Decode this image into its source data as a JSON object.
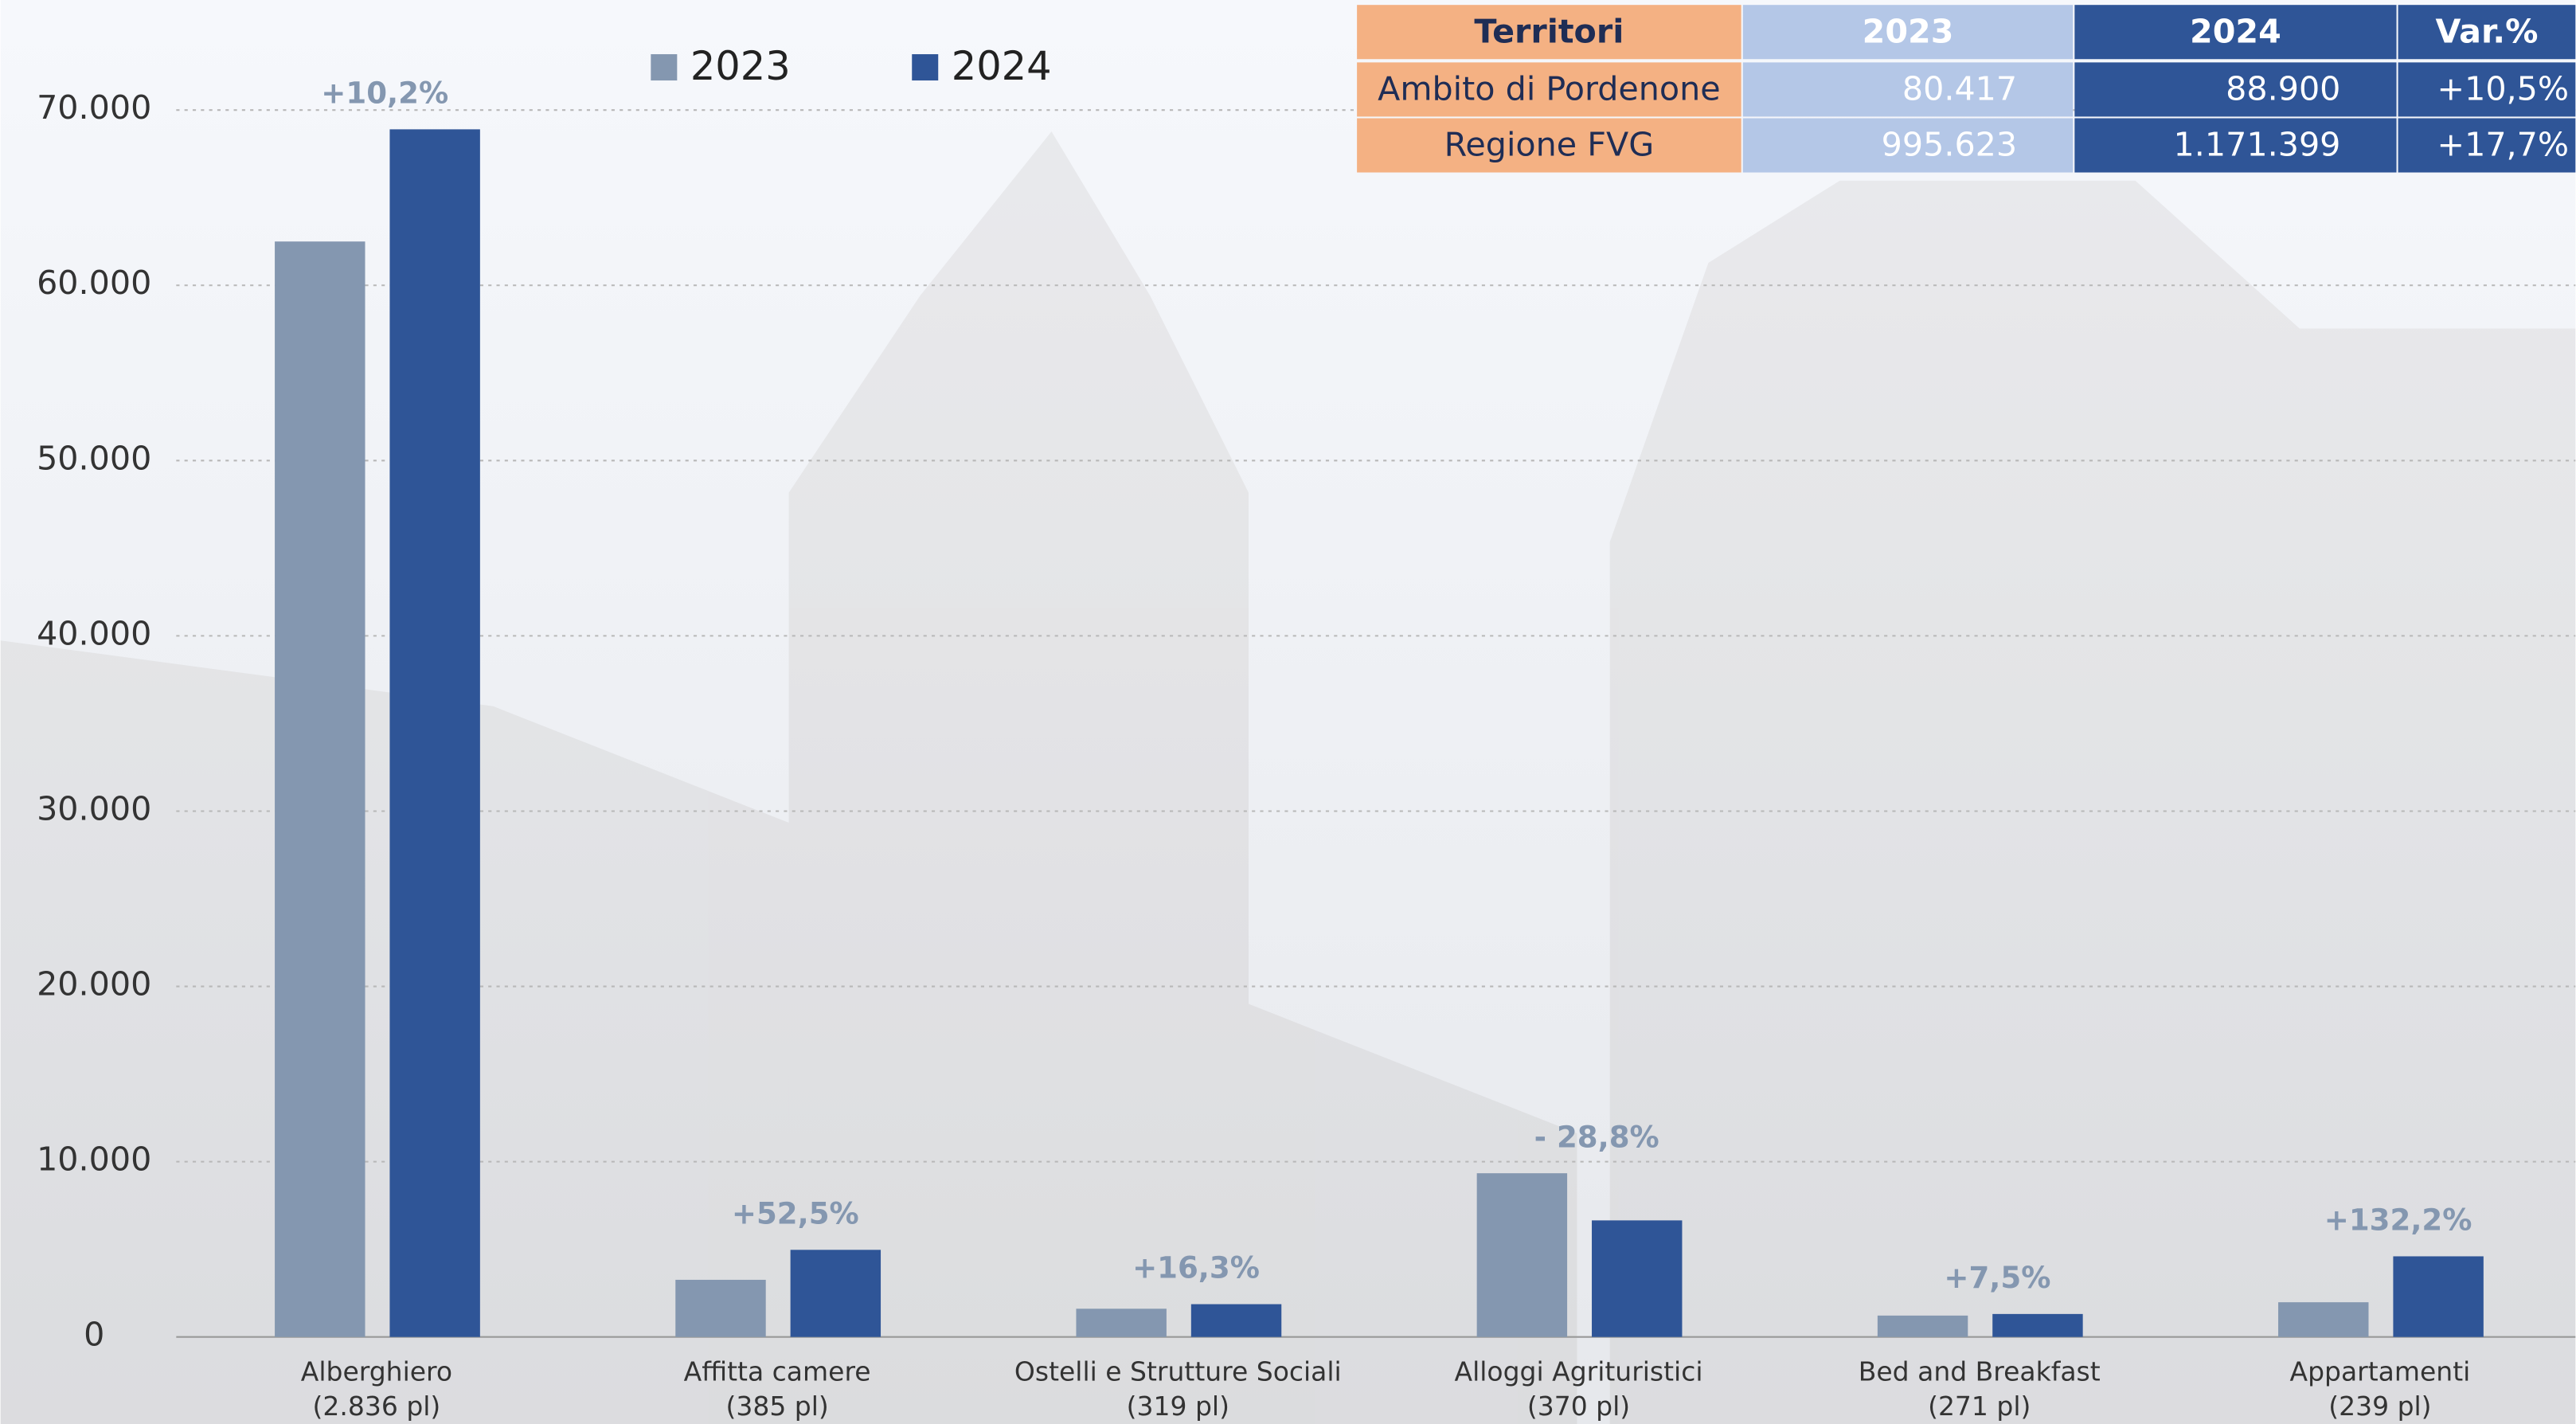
{
  "chart_data": {
    "type": "bar",
    "categories": [
      "Alberghiero",
      "Affitta camere",
      "Ostelli e Strutture Sociali",
      "Alloggi Agrituristici",
      "Bed and Breakfast",
      "Appartamenti"
    ],
    "category_sublabels": [
      "(2.836 pl)",
      "(385 pl)",
      "(319 pl)",
      "(370 pl)",
      "(271 pl)",
      "(239 pl)"
    ],
    "series": [
      {
        "name": "2023",
        "color": "#8497b0",
        "values": [
          62500,
          3260,
          1610,
          9340,
          1220,
          1980
        ]
      },
      {
        "name": "2024",
        "color": "#2f5597",
        "values": [
          68900,
          4970,
          1870,
          6650,
          1310,
          4600
        ]
      }
    ],
    "change_labels": [
      "+10,2%",
      "+52,5%",
      "+16,3%",
      "- 28,8%",
      "+7,5%",
      "+132,2%"
    ],
    "ylim": [
      0,
      70000
    ],
    "yticks": [
      0,
      {
        "value": 10000,
        "label": "10.000"
      },
      {
        "value": 20000,
        "label": "20.000"
      },
      {
        "value": 30000,
        "label": "30.000"
      },
      {
        "value": 40000,
        "label": "40.000"
      },
      {
        "value": 50000,
        "label": "50.000"
      },
      {
        "value": 60000,
        "label": "60.000"
      },
      {
        "value": 70000,
        "label": "70.000"
      }
    ],
    "grid": true,
    "legend": "top"
  },
  "table": {
    "header": [
      "Territori",
      "2023",
      "2024",
      "Var.%"
    ],
    "rows": [
      [
        "Ambito di Pordenone",
        "80.417",
        "88.900",
        "+10,5%"
      ],
      [
        "Regione FVG",
        "995.623",
        "1.171.399",
        "+17,7%"
      ]
    ]
  }
}
